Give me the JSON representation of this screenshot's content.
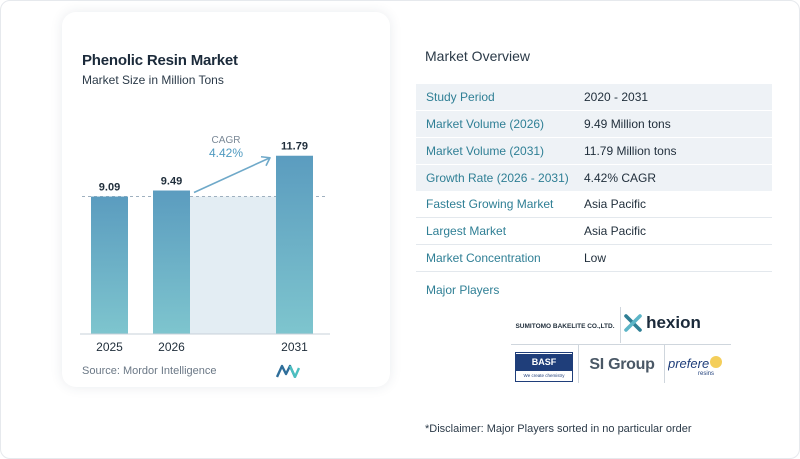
{
  "chart": {
    "title": "Phenolic Resin Market",
    "subtitle": "Market Size in Million Tons",
    "cagr_label": "CAGR",
    "cagr_value": "4.42%",
    "source": "Source:  Mordor Intelligence"
  },
  "chart_data": {
    "type": "bar",
    "categories": [
      "2025",
      "2026",
      "2031"
    ],
    "values": [
      9.09,
      9.49,
      11.79
    ],
    "value_labels": [
      "9.09",
      "9.49",
      "11.79"
    ],
    "title": "Phenolic Resin Market",
    "subtitle": "Market Size in Million Tons",
    "annotation": "CAGR 4.42%",
    "ylim": [
      0,
      12
    ],
    "grid": false,
    "colors": {
      "bar_top": "#5b9cbf",
      "bar_bottom": "#7ec5ce",
      "band": "#e3edf3",
      "arrow": "#6fa9c9"
    }
  },
  "overview": {
    "title": "Market Overview",
    "rows": [
      {
        "label": "Study Period",
        "value": "2020 - 2031"
      },
      {
        "label": "Market Volume (2026)",
        "value": "9.49 Million tons"
      },
      {
        "label": "Market Volume (2031)",
        "value": "11.79 Million tons"
      },
      {
        "label": "Growth Rate (2026 - 2031)",
        "value": "4.42% CAGR"
      },
      {
        "label": "Fastest Growing Market",
        "value": "Asia Pacific"
      },
      {
        "label": "Largest Market",
        "value": "Asia Pacific"
      },
      {
        "label": "Market Concentration",
        "value": "Low"
      }
    ],
    "players_title": "Major Players",
    "players": {
      "sumitomo": "SUMITOMO BAKELITE CO.,LTD.",
      "hexion": "hexion",
      "basf": "BASF",
      "basf_tag": "We create chemistry",
      "si_group": "SI Group",
      "prefere": "prefere",
      "prefere_tag": "resins"
    },
    "disclaimer": "*Disclaimer: Major Players sorted in no particular order"
  }
}
